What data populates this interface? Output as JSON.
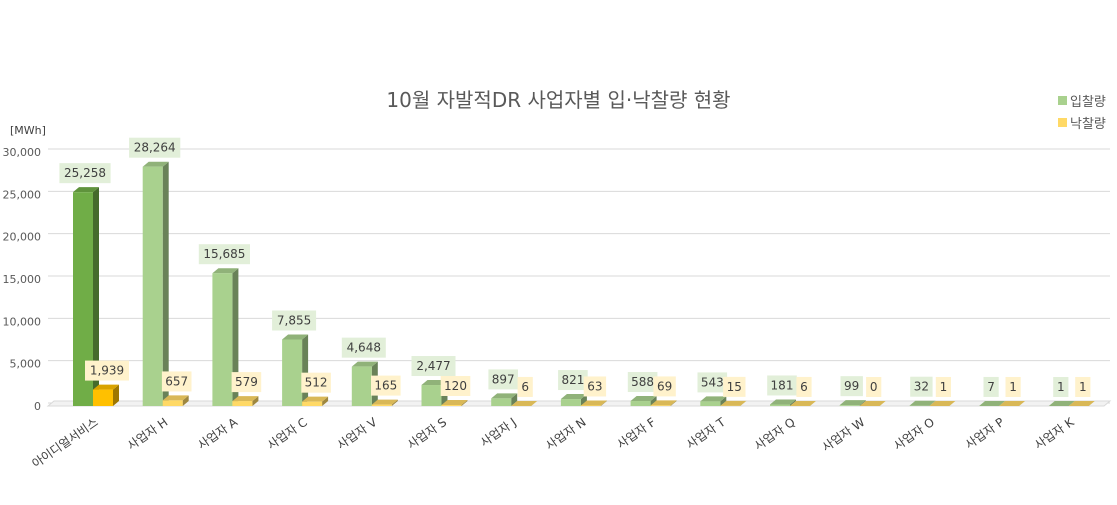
{
  "chart_data": {
    "type": "bar",
    "title": "10월 자발적DR 사업자별 입·낙찰량 현황",
    "ylabel": "[MWh]",
    "xlabel": "",
    "ylim": [
      0,
      30000
    ],
    "yticks": [
      "0",
      "5,000",
      "10,000",
      "15,000",
      "20,000",
      "25,000",
      "30,000"
    ],
    "grid": true,
    "legend_position": "top-right",
    "categories": [
      "아이디얼서비스",
      "사업자 H",
      "사업자 A",
      "사업자 C",
      "사업자 V",
      "사업자 S",
      "사업자 J",
      "사업자 N",
      "사업자 F",
      "사업자 T",
      "사업자 Q",
      "사업자 W",
      "사업자 O",
      "사업자 P",
      "사업자 K"
    ],
    "series": [
      {
        "name": "입찰량",
        "color": "#a9d18e",
        "highlight_color": "#70ad47",
        "values": [
          25258,
          28264,
          15685,
          7855,
          4648,
          2477,
          897,
          821,
          588,
          543,
          181,
          99,
          32,
          7,
          1
        ],
        "labels": [
          "25,258",
          "28,264",
          "15,685",
          "7,855",
          "4,648",
          "2,477",
          "897",
          "821",
          "588",
          "543",
          "181",
          "99",
          "32",
          "7",
          "1"
        ]
      },
      {
        "name": "낙찰량",
        "color": "#ffd966",
        "highlight_color": "#ffc000",
        "values": [
          1939,
          657,
          579,
          512,
          165,
          120,
          6,
          63,
          69,
          15,
          6,
          0,
          1,
          1,
          1
        ],
        "labels": [
          "1,939",
          "657",
          "579",
          "512",
          "165",
          "120",
          "6",
          "63",
          "69",
          "15",
          "6",
          "0",
          "1",
          "1",
          "1"
        ]
      }
    ]
  }
}
